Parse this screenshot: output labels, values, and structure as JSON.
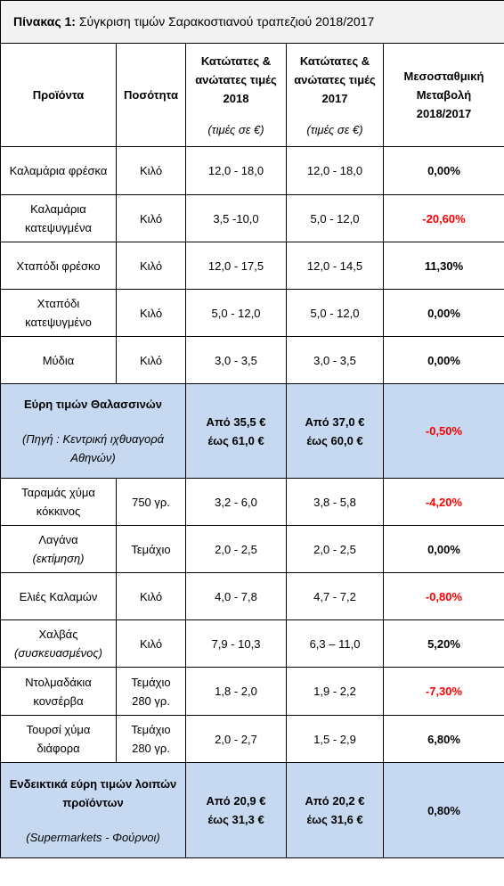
{
  "title": {
    "label": "Πίνακας 1:",
    "text": "Σύγκριση τιμών Σαρακοστιανού τραπεζιού 2018/2017"
  },
  "headers": {
    "product": "Προϊόντα",
    "quantity": "Ποσότητα",
    "y2018": "Κατώτατες & ανώτατες τιμές 2018",
    "y2017": "Κατώτατες & ανώτατες τιμές 2017",
    "units": "(τιμές σε €)",
    "change": "Μεσοσταθμική Μεταβολή 2018/2017"
  },
  "seafood_rows": [
    {
      "product": "Καλαμάρια φρέσκα",
      "note": "",
      "quantity": "Κιλό",
      "p2018": "12,0 - 18,0",
      "p2017": "12,0 - 18,0",
      "change": "0,00%",
      "sign": "zero"
    },
    {
      "product": "Καλαμάρια κατεψυγμένα",
      "note": "",
      "quantity": "Κιλό",
      "p2018": "3,5 -10,0",
      "p2017": "5,0 - 12,0",
      "change": "-20,60%",
      "sign": "neg"
    },
    {
      "product": "Χταπόδι φρέσκο",
      "note": "",
      "quantity": "Κιλό",
      "p2018": "12,0 - 17,5",
      "p2017": "12,0 - 14,5",
      "change": "11,30%",
      "sign": "pos"
    },
    {
      "product": "Χταπόδι κατεψυγμένο",
      "note": "",
      "quantity": "Κιλό",
      "p2018": "5,0 - 12,0",
      "p2017": "5,0 - 12,0",
      "change": "0,00%",
      "sign": "zero"
    },
    {
      "product": "Μύδια",
      "note": "",
      "quantity": "Κιλό",
      "p2018": "3,0 - 3,5",
      "p2017": "3,0 - 3,5",
      "change": "0,00%",
      "sign": "zero"
    }
  ],
  "seafood_summary": {
    "label": "Εύρη τιμών Θαλασσινών",
    "source": "(Πηγή : Κεντρική ιχθυαγορά Αθηνών)",
    "r2018_a": "Από 35,5 €",
    "r2018_b": "έως 61,0 €",
    "r2017_a": "Από 37,0 €",
    "r2017_b": "έως 60,0 €",
    "change": "-0,50%"
  },
  "other_rows": [
    {
      "product": "Ταραμάς χύμα κόκκινος",
      "note": "",
      "quantity": "750 γρ.",
      "p2018": "3,2 - 6,0",
      "p2017": "3,8 - 5,8",
      "change": "-4,20%",
      "sign": "neg"
    },
    {
      "product": "Λαγάνα",
      "note": "(εκτίμηση)",
      "quantity": "Τεμάχιο",
      "p2018": "2,0 - 2,5",
      "p2017": "2,0 - 2,5",
      "change": "0,00%",
      "sign": "zero"
    },
    {
      "product": "Ελιές Καλαμών",
      "note": "",
      "quantity": "Κιλό",
      "p2018": "4,0 - 7,8",
      "p2017": "4,7 - 7,2",
      "change": "-0,80%",
      "sign": "neg"
    },
    {
      "product": "Χαλβάς",
      "note": "(συσκευασμένος)",
      "quantity": "Κιλό",
      "p2018": "7,9 - 10,3",
      "p2017": "6,3 – 11,0",
      "change": "5,20%",
      "sign": "pos"
    },
    {
      "product": "Ντολμαδάκια κονσέρβα",
      "note": "",
      "quantity": "Τεμάχιο 280 γρ.",
      "p2018": "1,8 - 2,0",
      "p2017": "1,9 - 2,2",
      "change": "-7,30%",
      "sign": "neg"
    },
    {
      "product": "Τουρσί χύμα διάφορα",
      "note": "",
      "quantity": "Τεμάχιο 280 γρ.",
      "p2018": "2,0 - 2,7",
      "p2017": "1,5 - 2,9",
      "change": "6,80%",
      "sign": "pos"
    }
  ],
  "other_summary": {
    "label": "Ενδεικτικά εύρη τιμών λοιπών προϊόντων",
    "source": "(Supermarkets - Φούρνοι)",
    "r2018_a": "Από 20,9 €",
    "r2018_b": "έως 31,3 €",
    "r2017_a": "Από 20,2 €",
    "r2017_b": "έως 31,6 €",
    "change": "0,80%"
  }
}
